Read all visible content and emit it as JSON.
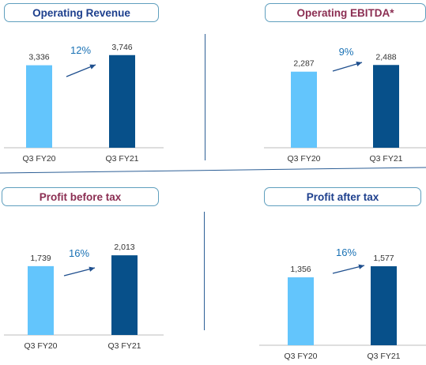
{
  "colors": {
    "bar_fy20": "#63c5fc",
    "bar_fy21": "#07508a",
    "growth_text": "#1a72b5",
    "arrow": "#1f4f8e",
    "axis": "#bcbcbc",
    "title_blue": "#1d3f8d",
    "title_maroon": "#8b2e52",
    "value_text": "#333333",
    "tick_text": "#333333"
  },
  "chart_data": [
    {
      "type": "bar",
      "title": "Operating Revenue",
      "categories": [
        "Q3 FY20",
        "Q3 FY21"
      ],
      "values": [
        3336,
        3746
      ],
      "value_labels": [
        "3,336",
        "3,746"
      ],
      "growth": "12%"
    },
    {
      "type": "bar",
      "title": "Operating EBITDA*",
      "categories": [
        "Q3 FY20",
        "Q3 FY21"
      ],
      "values": [
        2287,
        2488
      ],
      "value_labels": [
        "2,287",
        "2,488"
      ],
      "growth": "9%"
    },
    {
      "type": "bar",
      "title": "Profit before tax",
      "categories": [
        "Q3 FY20",
        "Q3 FY21"
      ],
      "values": [
        1739,
        2013
      ],
      "value_labels": [
        "1,739",
        "2,013"
      ],
      "growth": "16%"
    },
    {
      "type": "bar",
      "title": "Profit after tax",
      "categories": [
        "Q3 FY20",
        "Q3 FY21"
      ],
      "values": [
        1356,
        1577
      ],
      "value_labels": [
        "1,356",
        "1,577"
      ],
      "growth": "16%"
    }
  ]
}
